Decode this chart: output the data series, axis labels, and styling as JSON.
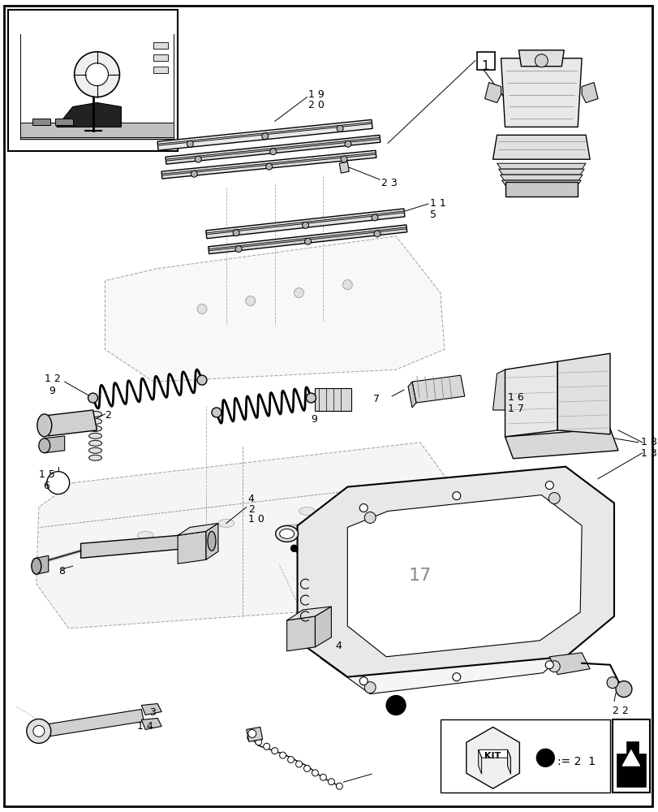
{
  "bg": "#ffffff",
  "lc": "#000000",
  "fig_width": 8.12,
  "fig_height": 10.0,
  "dpi": 100
}
